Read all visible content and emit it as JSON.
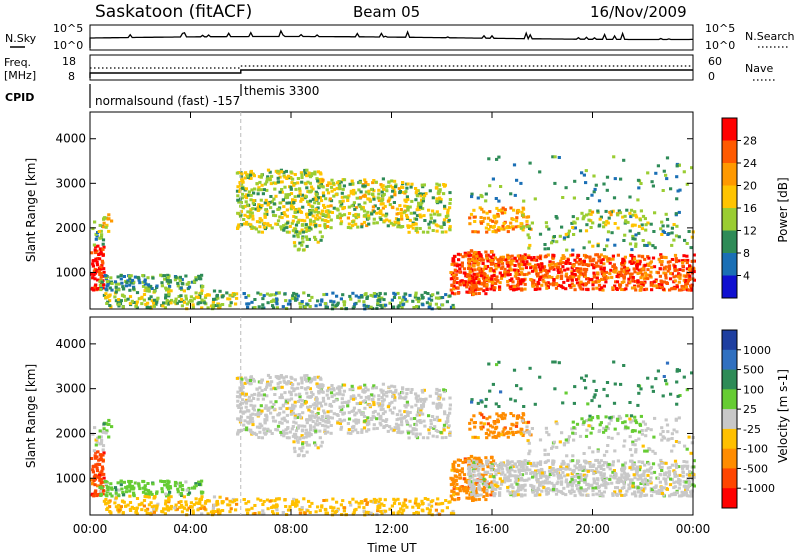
{
  "header": {
    "title": "Saskatoon (fitACF)",
    "beam": "Beam 05",
    "date": "16/Nov/2009"
  },
  "top_panels": {
    "nsky_label": "N.Sky",
    "nsearch_label": "N.Search",
    "nsky_ticks": [
      "10^5",
      "10^0"
    ],
    "nsearch_ticks": [
      "10^5",
      "10^0"
    ],
    "freq_label_1": "Freq.",
    "freq_label_2": "[MHz]",
    "freq_ticks": [
      "18",
      "8"
    ],
    "nave_label": "Nave",
    "nave_ticks": [
      "60",
      "0"
    ],
    "cpid_label": "CPID",
    "cpid_modes": [
      {
        "text": "normalsound (fast) -157",
        "start_h": 0
      },
      {
        "text": "themis 3300",
        "start_h": 6
      }
    ]
  },
  "chart_data": [
    {
      "type": "heatmap",
      "name": "power",
      "ylabel": "Slant Range [km]",
      "ylim": [
        180,
        4600
      ],
      "yticks": [
        1000,
        2000,
        3000,
        4000
      ],
      "colorbar": {
        "label": "Power [dB]",
        "ticks": [
          "28",
          "24",
          "20",
          "16",
          "12",
          "8",
          "4"
        ],
        "colors": [
          "#ff0000",
          "#ff5a00",
          "#ff9900",
          "#ffc400",
          "#9acd32",
          "#2e8b57",
          "#1a6fb5",
          "#1010d0"
        ]
      }
    },
    {
      "type": "heatmap",
      "name": "velocity",
      "xlabel": "Time UT",
      "ylabel": "Slant Range [km]",
      "ylim": [
        180,
        4600
      ],
      "yticks": [
        1000,
        2000,
        3000,
        4000
      ],
      "xticks": [
        "00:00",
        "04:00",
        "08:00",
        "12:00",
        "16:00",
        "20:00",
        "00:00"
      ],
      "colorbar": {
        "label": "Velocity [m s-1]",
        "ticks": [
          "1000",
          "500",
          "100",
          "25",
          "-25",
          "-100",
          "-500",
          "-1000"
        ],
        "colors": [
          "#1f3fa0",
          "#3070c0",
          "#2e8b57",
          "#66cc33",
          "#c8c8c8",
          "#ffc000",
          "#ff8c00",
          "#ff4500",
          "#ff0000"
        ]
      }
    }
  ],
  "time_axis": {
    "xlim_hours": [
      0,
      24
    ]
  }
}
